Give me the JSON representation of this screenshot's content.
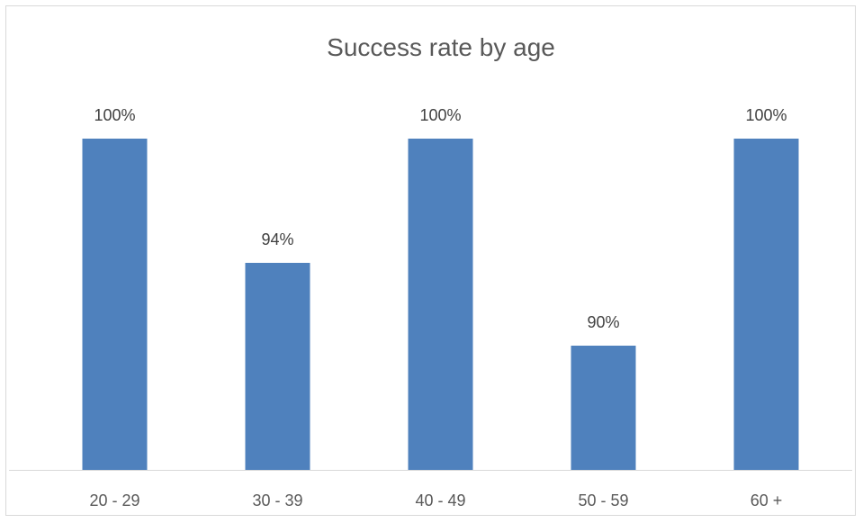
{
  "chart_data": {
    "type": "bar",
    "title": "Success rate by age",
    "xlabel": "",
    "ylabel": "",
    "categories": [
      "20 - 29",
      "30 - 39",
      "40 - 49",
      "50 - 59",
      "60 +"
    ],
    "values": [
      100,
      94,
      100,
      90,
      100
    ],
    "data_labels": [
      "100%",
      "94%",
      "100%",
      "90%",
      "100%"
    ],
    "ylim": [
      84,
      100
    ],
    "grid": false,
    "legend": "none",
    "bar_color": "#4f81bd"
  }
}
